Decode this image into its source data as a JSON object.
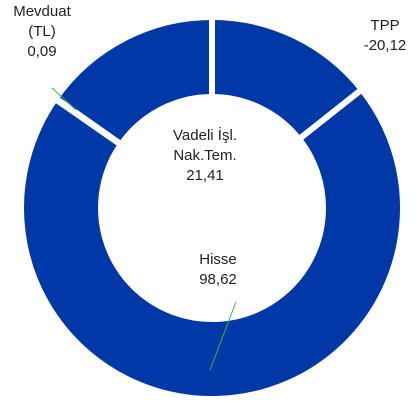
{
  "chart_data": {
    "type": "donut",
    "categories": [
      "TPP",
      "Hisse",
      "Mevduat (TL)",
      "Vadeli İşl. Nak.Tem."
    ],
    "values": [
      -20.12,
      98.62,
      0.09,
      21.41
    ],
    "value_labels": [
      "-20,12",
      "98,62",
      "0,09",
      "21,41"
    ],
    "color": "#0038a8"
  }
}
